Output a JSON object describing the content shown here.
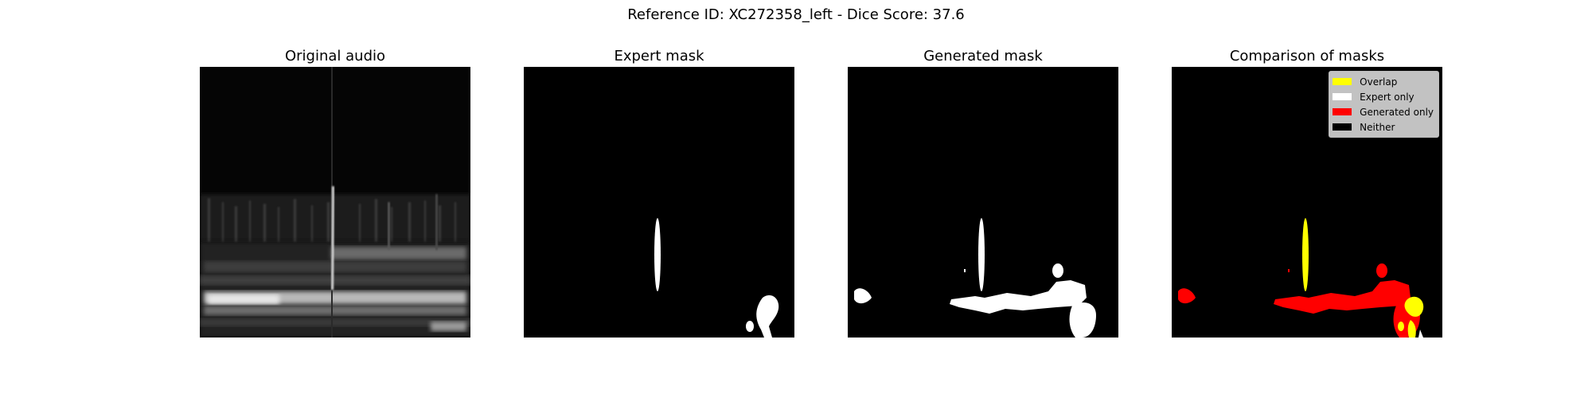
{
  "figure": {
    "title": "Reference ID: XC272358_left - Dice Score: 37.6"
  },
  "panels": [
    {
      "title": "Original audio"
    },
    {
      "title": "Expert mask"
    },
    {
      "title": "Generated mask"
    },
    {
      "title": "Comparison of masks"
    }
  ],
  "legend": {
    "items": [
      {
        "label": "Overlap",
        "color": "#ffff00"
      },
      {
        "label": "Expert only",
        "color": "#ffffff"
      },
      {
        "label": "Generated only",
        "color": "#ff0000"
      },
      {
        "label": "Neither",
        "color": "#000000"
      }
    ]
  },
  "colors": {
    "overlap": "#ffff00",
    "expert_only": "#ffffff",
    "generated_only": "#ff0000",
    "neither": "#000000"
  }
}
